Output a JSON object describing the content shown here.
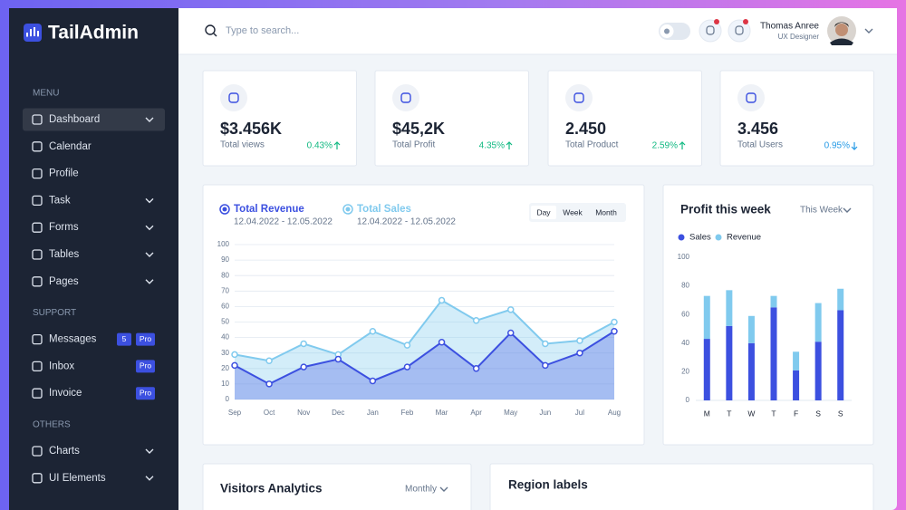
{
  "sidebar": {
    "logo": "TailAdmin",
    "sections": [
      {
        "title": "MENU",
        "items": [
          {
            "label": "Dashboard",
            "active": true,
            "dropdown": true
          },
          {
            "label": "Calendar"
          },
          {
            "label": "Profile"
          },
          {
            "label": "Task",
            "dropdown": true
          },
          {
            "label": "Forms",
            "dropdown": true
          },
          {
            "label": "Tables",
            "dropdown": true
          },
          {
            "label": "Pages",
            "dropdown": true
          }
        ]
      },
      {
        "title": "SUPPORT",
        "items": [
          {
            "label": "Messages",
            "badges": [
              "5",
              "Pro"
            ]
          },
          {
            "label": "Inbox",
            "badges": [
              "Pro"
            ]
          },
          {
            "label": "Invoice",
            "badges": [
              "Pro"
            ]
          }
        ]
      },
      {
        "title": "OTHERS",
        "items": [
          {
            "label": "Charts",
            "dropdown": true
          },
          {
            "label": "UI Elements",
            "dropdown": true
          }
        ]
      }
    ]
  },
  "header": {
    "search_placeholder": "Type to search...",
    "user": {
      "name": "Thomas Anree",
      "role": "UX Designer"
    }
  },
  "stats": [
    {
      "value": "$3.456K",
      "label": "Total views",
      "change": "0.43%",
      "trend": "up"
    },
    {
      "value": "$45,2K",
      "label": "Total Profit",
      "change": "4.35%",
      "trend": "up"
    },
    {
      "value": "2.450",
      "label": "Total Product",
      "change": "2.59%",
      "trend": "up"
    },
    {
      "value": "3.456",
      "label": "Total Users",
      "change": "0.95%",
      "trend": "down"
    }
  ],
  "revenue_chart": {
    "type": "line",
    "periods": [
      "Day",
      "Week",
      "Month"
    ],
    "selected_period": "Day",
    "categories": [
      "Sep",
      "Oct",
      "Nov",
      "Dec",
      "Jan",
      "Feb",
      "Mar",
      "Apr",
      "May",
      "Jun",
      "Jul",
      "Aug"
    ],
    "series": [
      {
        "name": "Total Revenue",
        "date_range": "12.04.2022 - 12.05.2022",
        "color": "#3c50e0",
        "values": [
          22,
          10,
          21,
          26,
          12,
          21,
          37,
          20,
          43,
          22,
          30,
          44
        ]
      },
      {
        "name": "Total Sales",
        "date_range": "12.04.2022 - 12.05.2022",
        "color": "#80caee",
        "values": [
          29,
          25,
          36,
          29,
          44,
          35,
          64,
          51,
          58,
          36,
          38,
          50
        ]
      }
    ],
    "ylim": [
      0,
      100
    ],
    "yticks": [
      0,
      10,
      20,
      30,
      40,
      50,
      60,
      70,
      80,
      90,
      100
    ],
    "grid": true
  },
  "profit_chart": {
    "type": "bar",
    "stacked": true,
    "title": "Profit this week",
    "filter": "This Week",
    "categories": [
      "M",
      "T",
      "W",
      "T",
      "F",
      "S",
      "S"
    ],
    "series": [
      {
        "name": "Sales",
        "color": "#3c50e0",
        "values": [
          43,
          52,
          40,
          65,
          21,
          41,
          63
        ]
      },
      {
        "name": "Revenue",
        "color": "#80caee",
        "values": [
          30,
          25,
          19,
          8,
          13,
          27,
          15
        ]
      }
    ],
    "ylim": [
      0,
      100
    ],
    "yticks": [
      0,
      20,
      40,
      60,
      80,
      100
    ],
    "grid": false
  },
  "visitors": {
    "title": "Visitors Analytics",
    "filter": "Monthly"
  },
  "region": {
    "title": "Region labels"
  }
}
